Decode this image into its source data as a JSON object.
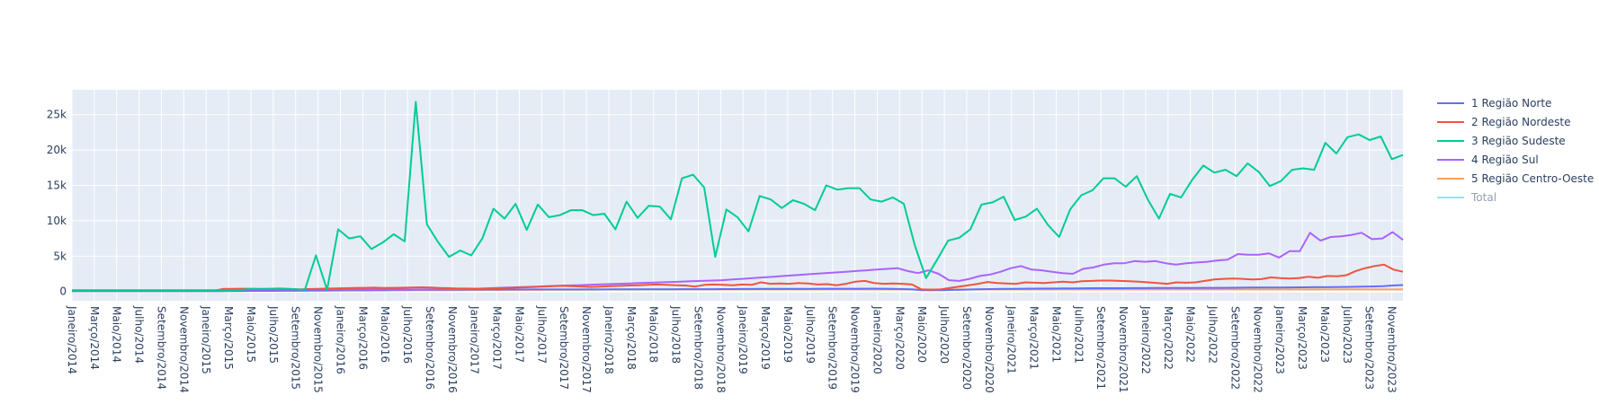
{
  "chart_data": {
    "type": "line",
    "title": "",
    "xlabel": "",
    "ylabel": "",
    "ylim": [
      -1300,
      28500
    ],
    "y_ticks": [
      0,
      5000,
      10000,
      15000,
      20000,
      25000
    ],
    "y_tick_labels": [
      "0",
      "5k",
      "10k",
      "15k",
      "20k",
      "25k"
    ],
    "x_tick_labels": [
      "Janeiro/2014",
      "Março/2014",
      "Maio/2014",
      "Julho/2014",
      "Setembro/2014",
      "Novembro/2014",
      "Janeiro/2015",
      "Março/2015",
      "Maio/2015",
      "Julho/2015",
      "Setembro/2015",
      "Novembro/2015",
      "Janeiro/2016",
      "Março/2016",
      "Maio/2016",
      "Julho/2016",
      "Setembro/2016",
      "Novembro/2016",
      "Janeiro/2017",
      "Março/2017",
      "Maio/2017",
      "Julho/2017",
      "Setembro/2017",
      "Novembro/2017",
      "Janeiro/2018",
      "Março/2018",
      "Maio/2018",
      "Julho/2018",
      "Setembro/2018",
      "Novembro/2018",
      "Janeiro/2019",
      "Março/2019",
      "Maio/2019",
      "Julho/2019",
      "Setembro/2019",
      "Novembro/2019",
      "Janeiro/2020",
      "Março/2020",
      "Maio/2020",
      "Julho/2020",
      "Setembro/2020",
      "Novembro/2020",
      "Janeiro/2021",
      "Março/2021",
      "Maio/2021",
      "Julho/2021",
      "Setembro/2021",
      "Novembro/2021",
      "Janeiro/2022",
      "Março/2022",
      "Maio/2022",
      "Julho/2022",
      "Setembro/2022",
      "Novembro/2022",
      "Janeiro/2023",
      "Março/2023",
      "Maio/2023",
      "Julho/2023",
      "Setembro/2023",
      "Novembro/2023"
    ],
    "x_start": "Janeiro/2014",
    "x_end": "Dezembro/2023",
    "grid": true,
    "legend_position": "right",
    "plot_background": "#e5ecf6",
    "series": [
      {
        "name": "1 Região Norte",
        "color": "#636efa",
        "visible": true,
        "values": [
          70,
          70,
          70,
          70,
          70,
          70,
          70,
          70,
          70,
          70,
          70,
          70,
          70,
          70,
          70,
          70,
          80,
          80,
          90,
          90,
          100,
          110,
          120,
          130,
          140,
          150,
          160,
          170,
          180,
          190,
          200,
          210,
          220,
          230,
          240,
          250,
          260,
          260,
          270,
          270,
          280,
          280,
          290,
          290,
          290,
          300,
          300,
          300,
          300,
          300,
          300,
          300,
          300,
          300,
          310,
          310,
          310,
          310,
          320,
          320,
          320,
          330,
          330,
          340,
          340,
          350,
          350,
          360,
          360,
          370,
          380,
          380,
          390,
          390,
          390,
          400,
          400,
          400,
          400,
          400,
          410,
          400,
          380,
          350,
          300,
          200,
          180,
          200,
          230,
          260,
          300,
          330,
          350,
          370,
          380,
          400,
          410,
          420,
          430,
          440,
          450,
          460,
          470,
          470,
          480,
          480,
          490,
          490,
          500,
          500,
          500,
          510,
          510,
          520,
          520,
          530,
          540,
          550,
          560,
          560,
          570,
          580,
          590,
          600,
          610,
          620,
          640,
          650,
          670,
          690,
          710,
          760,
          860,
          920
        ]
      },
      {
        "name": "2 Região Nordeste",
        "color": "#ef553b",
        "visible": true,
        "values": [
          100,
          100,
          100,
          100,
          100,
          100,
          100,
          100,
          100,
          100,
          100,
          100,
          100,
          100,
          100,
          100,
          380,
          380,
          400,
          400,
          380,
          400,
          420,
          380,
          300,
          350,
          380,
          420,
          450,
          480,
          500,
          530,
          550,
          500,
          520,
          540,
          560,
          600,
          580,
          500,
          480,
          420,
          420,
          380,
          400,
          420,
          500,
          550,
          600,
          650,
          700,
          750,
          800,
          750,
          700,
          650,
          700,
          750,
          800,
          850,
          900,
          950,
          1000,
          950,
          900,
          850,
          700,
          950,
          1000,
          950,
          900,
          1000,
          950,
          1300,
          1100,
          1150,
          1100,
          1200,
          1150,
          1000,
          1050,
          900,
          1100,
          1400,
          1500,
          1200,
          1100,
          1150,
          1100,
          1000,
          300,
          250,
          300,
          500,
          700,
          900,
          1100,
          1350,
          1200,
          1150,
          1100,
          1300,
          1250,
          1200,
          1300,
          1400,
          1300,
          1450,
          1500,
          1550,
          1550,
          1500,
          1450,
          1400,
          1300,
          1200,
          1100,
          1300,
          1250,
          1300,
          1500,
          1700,
          1800,
          1850,
          1800,
          1700,
          1750,
          2000,
          1900,
          1850,
          1900,
          2100,
          1950,
          2200,
          2150,
          2300,
          2900,
          3300,
          3600,
          3800,
          3100,
          2800
        ]
      },
      {
        "name": "3 Região Sudeste",
        "color": "#00cc96",
        "visible": true,
        "values": [
          200,
          200,
          200,
          200,
          200,
          200,
          200,
          200,
          200,
          200,
          200,
          200,
          200,
          200,
          200,
          200,
          350,
          350,
          350,
          350,
          350,
          250,
          5100,
          250,
          8800,
          7500,
          7800,
          6000,
          6900,
          8100,
          7100,
          26800,
          9500,
          7000,
          4900,
          5800,
          5100,
          7500,
          11700,
          10300,
          12400,
          8700,
          12300,
          10500,
          10800,
          11500,
          11500,
          10800,
          11000,
          8800,
          12700,
          10400,
          12100,
          12000,
          10200,
          16000,
          16500,
          14700,
          4900,
          11600,
          10500,
          8500,
          13500,
          13000,
          11800,
          12900,
          12400,
          11500,
          15000,
          14400,
          14600,
          14600,
          13000,
          12700,
          13300,
          12400,
          6500,
          1900,
          4500,
          7200,
          7600,
          8800,
          12300,
          12600,
          13400,
          10100,
          10600,
          11700,
          9400,
          7700,
          11600,
          13600,
          14300,
          16000,
          16000,
          14800,
          16300,
          13000,
          10300,
          13800,
          13300,
          15800,
          17800,
          16800,
          17200,
          16300,
          18100,
          16900,
          14900,
          15600,
          17200,
          17400,
          17200,
          21000,
          19500,
          21800,
          22200,
          21400,
          21900,
          18700,
          19300
        ]
      },
      {
        "name": "4 Região Sul",
        "color": "#ab63fa",
        "visible": true,
        "values": [
          120,
          120,
          120,
          120,
          120,
          120,
          120,
          120,
          120,
          120,
          120,
          120,
          120,
          120,
          120,
          120,
          250,
          260,
          270,
          270,
          270,
          270,
          270,
          280,
          290,
          300,
          300,
          300,
          300,
          300,
          300,
          300,
          300,
          300,
          310,
          320,
          330,
          350,
          380,
          400,
          450,
          500,
          550,
          600,
          650,
          700,
          750,
          800,
          850,
          900,
          950,
          1000,
          1050,
          1100,
          1150,
          1200,
          1250,
          1300,
          1350,
          1400,
          1450,
          1500,
          1550,
          1600,
          1700,
          1800,
          1900,
          2000,
          2100,
          2200,
          2300,
          2400,
          2500,
          2600,
          2700,
          2800,
          2900,
          3000,
          3100,
          3200,
          3300,
          2900,
          2600,
          3000,
          2500,
          1600,
          1500,
          1800,
          2200,
          2400,
          2800,
          3300,
          3600,
          3100,
          3000,
          2800,
          2600,
          2500,
          3200,
          3400,
          3800,
          4000,
          4000,
          4300,
          4200,
          4300,
          4000,
          3800,
          4000,
          4100,
          4200,
          4400,
          4500,
          5300,
          5200,
          5200,
          5400,
          4800,
          5700,
          5700,
          8300,
          7200,
          7700,
          7800,
          8000,
          8300,
          7400,
          7500,
          8400,
          7300
        ]
      },
      {
        "name": "5 Região Centro-Oeste",
        "color": "#ffa15a",
        "visible": true,
        "values": [
          60,
          60,
          60,
          60,
          60,
          60,
          60,
          60,
          60,
          60,
          60,
          60,
          60,
          60,
          60,
          60,
          80,
          80,
          90,
          90,
          100,
          100,
          110,
          110,
          120,
          120,
          130,
          130,
          140,
          140,
          150,
          150,
          160,
          160,
          170,
          170,
          180,
          180,
          190,
          190,
          200,
          200,
          210,
          210,
          220,
          220,
          230,
          230,
          240,
          240,
          250,
          250,
          260,
          260,
          270,
          270,
          280,
          280,
          290,
          290,
          300,
          300,
          300,
          300,
          300,
          300,
          300,
          300,
          300,
          300,
          300,
          300,
          300,
          300,
          300,
          300,
          300,
          300,
          300,
          300,
          300,
          300,
          300,
          300,
          300,
          300,
          300,
          300,
          300,
          300,
          300,
          300,
          300,
          300,
          300,
          300,
          300,
          300,
          300,
          300,
          300,
          300,
          300,
          300,
          300,
          300,
          300,
          300,
          300,
          300,
          300,
          300,
          300,
          300,
          300,
          300,
          300,
          300,
          300,
          300,
          300,
          300,
          300,
          300,
          300,
          300,
          300,
          300,
          300,
          300,
          300,
          300,
          300,
          300,
          300,
          300,
          300,
          300,
          300,
          300,
          300
        ]
      },
      {
        "name": "Total",
        "color": "#19d3f3",
        "visible": false,
        "values": []
      }
    ]
  }
}
